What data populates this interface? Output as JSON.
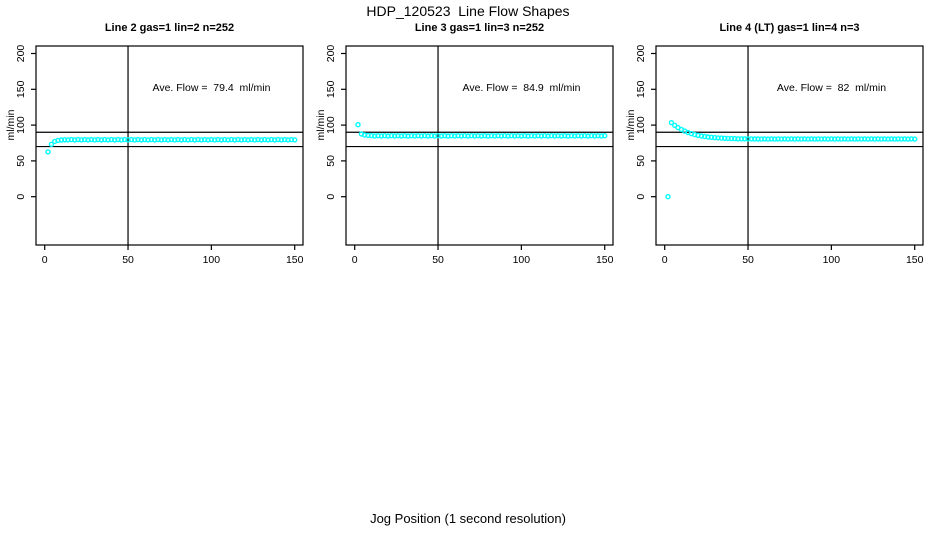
{
  "figure": {
    "title": "HDP_120523  Line Flow Shapes",
    "xlabel": "Jog Position (1 second resolution)",
    "point_color": "#00FFFF",
    "axis_color": "#000000",
    "background": "#ffffff"
  },
  "chart_data": [
    {
      "type": "scatter",
      "title": "Line 2 gas=1 lin=2 n=252",
      "annotation": "Ave. Flow =  79.4  ml/min",
      "ave_flow": 79.4,
      "n": 252,
      "ylabel": "ml/min",
      "x_ticks": [
        0,
        50,
        100,
        150
      ],
      "y_ticks": [
        0,
        50,
        100,
        150,
        200
      ],
      "xlim": [
        0,
        155
      ],
      "ylim": [
        0,
        200
      ],
      "vline_x": 50,
      "ref_lines_y": [
        70,
        90
      ],
      "grid": false,
      "points": [
        [
          2,
          62.5
        ],
        [
          4,
          73.2
        ],
        [
          6,
          77.2
        ],
        [
          8,
          78.7
        ],
        [
          10,
          79.2
        ],
        [
          12,
          79.4
        ],
        [
          14,
          79.3
        ],
        [
          16,
          79.7
        ],
        [
          18,
          79.3
        ],
        [
          20,
          79.7
        ],
        [
          22,
          79.3
        ],
        [
          24,
          79.7
        ],
        [
          26,
          79.3
        ],
        [
          28,
          79.7
        ],
        [
          30,
          79.3
        ],
        [
          32,
          79.7
        ],
        [
          34,
          79.3
        ],
        [
          36,
          79.7
        ],
        [
          38,
          79.3
        ],
        [
          40,
          79.7
        ],
        [
          42,
          79.3
        ],
        [
          44,
          79.7
        ],
        [
          46,
          79.3
        ],
        [
          48,
          79.7
        ],
        [
          50,
          79.3
        ],
        [
          52,
          79.7
        ],
        [
          54,
          79.3
        ],
        [
          56,
          79.7
        ],
        [
          58,
          79.3
        ],
        [
          60,
          79.7
        ],
        [
          62,
          79.3
        ],
        [
          64,
          79.7
        ],
        [
          66,
          79.3
        ],
        [
          68,
          79.7
        ],
        [
          70,
          79.3
        ],
        [
          72,
          79.7
        ],
        [
          74,
          79.3
        ],
        [
          76,
          79.7
        ],
        [
          78,
          79.3
        ],
        [
          80,
          79.7
        ],
        [
          82,
          79.3
        ],
        [
          84,
          79.7
        ],
        [
          86,
          79.3
        ],
        [
          88,
          79.7
        ],
        [
          90,
          79.3
        ],
        [
          92,
          79.7
        ],
        [
          94,
          79.3
        ],
        [
          96,
          79.7
        ],
        [
          98,
          79.3
        ],
        [
          100,
          79.7
        ],
        [
          102,
          79.3
        ],
        [
          104,
          79.7
        ],
        [
          106,
          79.3
        ],
        [
          108,
          79.7
        ],
        [
          110,
          79.3
        ],
        [
          112,
          79.7
        ],
        [
          114,
          79.3
        ],
        [
          116,
          79.7
        ],
        [
          118,
          79.3
        ],
        [
          120,
          79.7
        ],
        [
          122,
          79.3
        ],
        [
          124,
          79.7
        ],
        [
          126,
          79.3
        ],
        [
          128,
          79.7
        ],
        [
          130,
          79.3
        ],
        [
          132,
          79.7
        ],
        [
          134,
          79.3
        ],
        [
          136,
          79.7
        ],
        [
          138,
          79.3
        ],
        [
          140,
          79.7
        ],
        [
          142,
          79.3
        ],
        [
          144,
          79.7
        ],
        [
          146,
          79.3
        ],
        [
          148,
          79.7
        ],
        [
          150,
          79.3
        ]
      ]
    },
    {
      "type": "scatter",
      "title": "Line 3 gas=1 lin=3 n=252",
      "annotation": "Ave. Flow =  84.9  ml/min",
      "ave_flow": 84.9,
      "n": 252,
      "ylabel": "ml/min",
      "x_ticks": [
        0,
        50,
        100,
        150
      ],
      "y_ticks": [
        0,
        50,
        100,
        150,
        200
      ],
      "xlim": [
        0,
        155
      ],
      "ylim": [
        0,
        200
      ],
      "vline_x": 50,
      "ref_lines_y": [
        70,
        90
      ],
      "grid": false,
      "points": [
        [
          2,
          100.5
        ],
        [
          4,
          87.5
        ],
        [
          6,
          86.2
        ],
        [
          8,
          85.6
        ],
        [
          10,
          85.3
        ],
        [
          12,
          84.8
        ],
        [
          14,
          85.2
        ],
        [
          16,
          84.8
        ],
        [
          18,
          85.2
        ],
        [
          20,
          84.8
        ],
        [
          22,
          85.2
        ],
        [
          24,
          84.8
        ],
        [
          26,
          85.2
        ],
        [
          28,
          84.8
        ],
        [
          30,
          85.2
        ],
        [
          32,
          84.8
        ],
        [
          34,
          85.2
        ],
        [
          36,
          84.8
        ],
        [
          38,
          85.2
        ],
        [
          40,
          84.8
        ],
        [
          42,
          85.2
        ],
        [
          44,
          84.8
        ],
        [
          46,
          85.2
        ],
        [
          48,
          84.8
        ],
        [
          50,
          85.2
        ],
        [
          52,
          84.8
        ],
        [
          54,
          85.2
        ],
        [
          56,
          84.8
        ],
        [
          58,
          85.2
        ],
        [
          60,
          84.8
        ],
        [
          62,
          85.2
        ],
        [
          64,
          84.8
        ],
        [
          66,
          85.2
        ],
        [
          68,
          84.8
        ],
        [
          70,
          85.2
        ],
        [
          72,
          84.8
        ],
        [
          74,
          85.2
        ],
        [
          76,
          84.8
        ],
        [
          78,
          85.2
        ],
        [
          80,
          84.8
        ],
        [
          82,
          85.2
        ],
        [
          84,
          84.8
        ],
        [
          86,
          85.2
        ],
        [
          88,
          84.8
        ],
        [
          90,
          85.2
        ],
        [
          92,
          84.8
        ],
        [
          94,
          85.2
        ],
        [
          96,
          84.8
        ],
        [
          98,
          85.2
        ],
        [
          100,
          84.8
        ],
        [
          102,
          85.2
        ],
        [
          104,
          84.8
        ],
        [
          106,
          85.2
        ],
        [
          108,
          84.8
        ],
        [
          110,
          85.2
        ],
        [
          112,
          84.8
        ],
        [
          114,
          85.2
        ],
        [
          116,
          84.8
        ],
        [
          118,
          85.2
        ],
        [
          120,
          84.8
        ],
        [
          122,
          85.2
        ],
        [
          124,
          84.8
        ],
        [
          126,
          85.2
        ],
        [
          128,
          84.8
        ],
        [
          130,
          85.2
        ],
        [
          132,
          84.8
        ],
        [
          134,
          85.2
        ],
        [
          136,
          84.8
        ],
        [
          138,
          85.2
        ],
        [
          140,
          84.8
        ],
        [
          142,
          85.2
        ],
        [
          144,
          84.8
        ],
        [
          146,
          85.2
        ],
        [
          148,
          84.8
        ],
        [
          150,
          85.2
        ]
      ]
    },
    {
      "type": "scatter",
      "title": "Line 4 (LT) gas=1 lin=4 n=3",
      "annotation": "Ave. Flow =  82  ml/min",
      "ave_flow": 82,
      "n": 3,
      "ylabel": "ml/min",
      "x_ticks": [
        0,
        50,
        100,
        150
      ],
      "y_ticks": [
        0,
        50,
        100,
        150,
        200
      ],
      "xlim": [
        0,
        155
      ],
      "ylim": [
        0,
        200
      ],
      "vline_x": 50,
      "ref_lines_y": [
        70,
        90
      ],
      "grid": false,
      "points": [
        [
          2,
          0
        ],
        [
          4,
          103.5
        ],
        [
          6,
          99.7
        ],
        [
          8,
          96.5
        ],
        [
          10,
          93.8
        ],
        [
          12,
          91.6
        ],
        [
          14,
          89.7
        ],
        [
          16,
          88.1
        ],
        [
          18,
          86.8
        ],
        [
          20,
          85.7
        ],
        [
          22,
          84.8
        ],
        [
          24,
          84.1
        ],
        [
          26,
          83.4
        ],
        [
          28,
          82.9
        ],
        [
          30,
          82.5
        ],
        [
          32,
          82.1
        ],
        [
          34,
          81.8
        ],
        [
          36,
          81.6
        ],
        [
          38,
          81.4
        ],
        [
          40,
          81.2
        ],
        [
          42,
          81.1
        ],
        [
          44,
          80.9
        ],
        [
          46,
          80.9
        ],
        [
          48,
          80.8
        ],
        [
          50,
          80.7
        ],
        [
          52,
          80.7
        ],
        [
          54,
          80.6
        ],
        [
          56,
          80.6
        ],
        [
          58,
          80.4
        ],
        [
          60,
          80.7
        ],
        [
          62,
          80.4
        ],
        [
          64,
          80.7
        ],
        [
          66,
          80.4
        ],
        [
          68,
          80.7
        ],
        [
          70,
          80.4
        ],
        [
          72,
          80.7
        ],
        [
          74,
          80.4
        ],
        [
          76,
          80.7
        ],
        [
          78,
          80.4
        ],
        [
          80,
          80.7
        ],
        [
          82,
          80.4
        ],
        [
          84,
          80.7
        ],
        [
          86,
          80.4
        ],
        [
          88,
          80.7
        ],
        [
          90,
          80.4
        ],
        [
          92,
          80.7
        ],
        [
          94,
          80.4
        ],
        [
          96,
          80.7
        ],
        [
          98,
          80.4
        ],
        [
          100,
          80.7
        ],
        [
          102,
          80.4
        ],
        [
          104,
          80.7
        ],
        [
          106,
          80.4
        ],
        [
          108,
          80.7
        ],
        [
          110,
          80.4
        ],
        [
          112,
          80.7
        ],
        [
          114,
          80.4
        ],
        [
          116,
          80.7
        ],
        [
          118,
          80.4
        ],
        [
          120,
          80.7
        ],
        [
          122,
          80.4
        ],
        [
          124,
          80.7
        ],
        [
          126,
          80.4
        ],
        [
          128,
          80.7
        ],
        [
          130,
          80.4
        ],
        [
          132,
          80.7
        ],
        [
          134,
          80.4
        ],
        [
          136,
          80.7
        ],
        [
          138,
          80.4
        ],
        [
          140,
          80.7
        ],
        [
          142,
          80.4
        ],
        [
          144,
          80.7
        ],
        [
          146,
          80.4
        ],
        [
          148,
          80.7
        ],
        [
          150,
          80.4
        ]
      ]
    }
  ]
}
